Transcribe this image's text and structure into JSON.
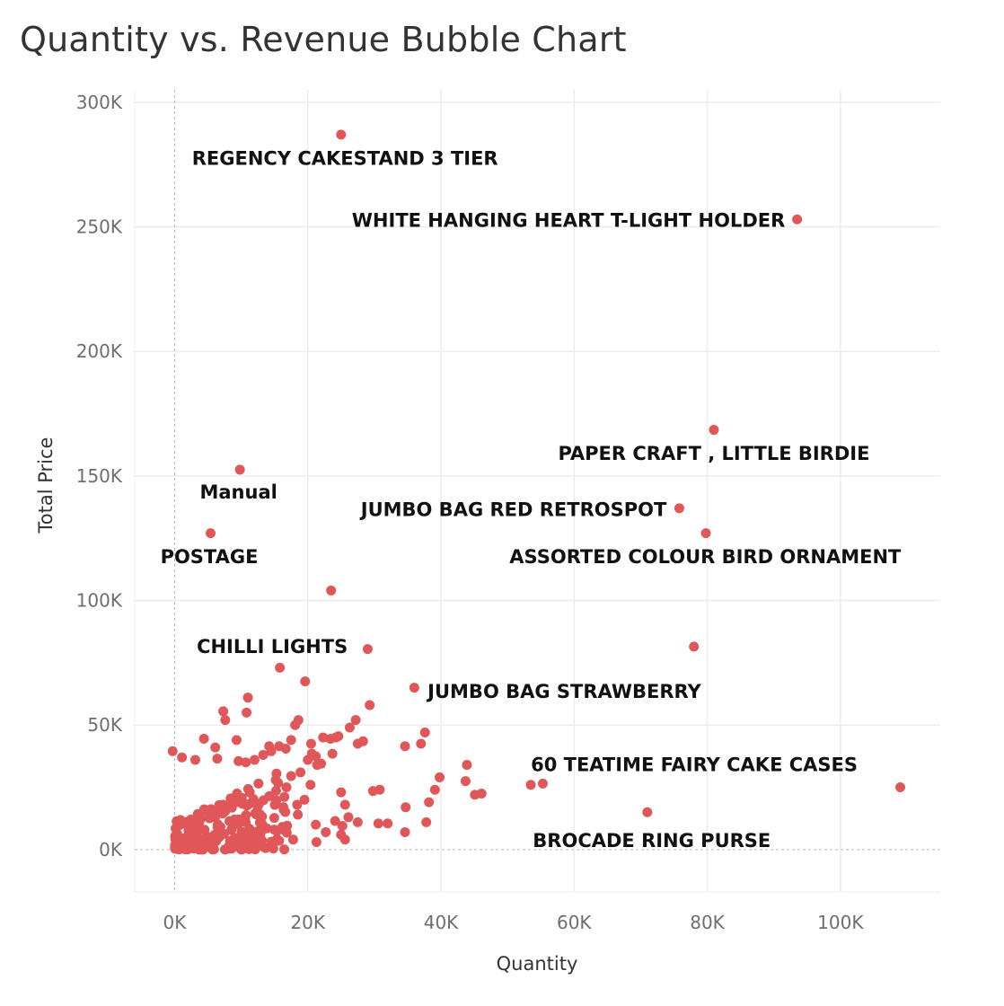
{
  "title": "Quantity vs. Revenue Bubble Chart",
  "colors": {
    "point": "#e05759",
    "grid": "#ececec",
    "zero_line": "#b5b5b5"
  },
  "chart_data": {
    "type": "scatter",
    "title": "Quantity vs. Revenue Bubble Chart",
    "xlabel": "Quantity",
    "ylabel": "Total Price",
    "xlim": [
      -6000,
      115000
    ],
    "ylim": [
      -17000,
      305000
    ],
    "xticks": [
      0,
      20000,
      40000,
      60000,
      80000,
      100000
    ],
    "xtick_labels": [
      "0K",
      "20K",
      "40K",
      "60K",
      "80K",
      "100K"
    ],
    "yticks": [
      0,
      50000,
      100000,
      150000,
      200000,
      250000,
      300000
    ],
    "ytick_labels": [
      "0K",
      "50K",
      "100K",
      "150K",
      "200K",
      "250K",
      "300K"
    ],
    "grid": true,
    "points": [
      {
        "x": 25000,
        "y": 287000
      },
      {
        "x": 93500,
        "y": 253000
      },
      {
        "x": 81000,
        "y": 168500
      },
      {
        "x": 75800,
        "y": 137000
      },
      {
        "x": 79800,
        "y": 127000
      },
      {
        "x": 9800,
        "y": 152500
      },
      {
        "x": 5400,
        "y": 127000
      },
      {
        "x": 23500,
        "y": 104000
      },
      {
        "x": 29000,
        "y": 80500
      },
      {
        "x": 78000,
        "y": 81500
      },
      {
        "x": 36000,
        "y": 65000
      },
      {
        "x": 109000,
        "y": 25000
      },
      {
        "x": 71000,
        "y": 15000
      },
      {
        "x": 53500,
        "y": 26000
      },
      {
        "x": 55300,
        "y": 26500
      },
      {
        "x": 15800,
        "y": 73000
      },
      {
        "x": 19600,
        "y": 67500
      },
      {
        "x": 11000,
        "y": 61000
      },
      {
        "x": 29300,
        "y": 58000
      },
      {
        "x": 7300,
        "y": 55500
      },
      {
        "x": 10800,
        "y": 55000
      },
      {
        "x": 7600,
        "y": 52000
      },
      {
        "x": 18600,
        "y": 52000
      },
      {
        "x": 18100,
        "y": 50000
      },
      {
        "x": 27200,
        "y": 52000
      },
      {
        "x": 37600,
        "y": 47000
      },
      {
        "x": 26300,
        "y": 49000
      },
      {
        "x": 34600,
        "y": 41500
      },
      {
        "x": 37000,
        "y": 42500
      },
      {
        "x": 43900,
        "y": 34000
      },
      {
        "x": 39800,
        "y": 29000
      },
      {
        "x": 43700,
        "y": 27500
      },
      {
        "x": 45100,
        "y": 22000
      },
      {
        "x": 46100,
        "y": 22500
      },
      {
        "x": 39100,
        "y": 24000
      },
      {
        "x": 30800,
        "y": 24000
      },
      {
        "x": 29800,
        "y": 23500
      },
      {
        "x": 38200,
        "y": 19000
      },
      {
        "x": 34700,
        "y": 17000
      },
      {
        "x": 37800,
        "y": 11000
      },
      {
        "x": 32000,
        "y": 10500
      },
      {
        "x": 30600,
        "y": 10500
      },
      {
        "x": 34600,
        "y": 7000
      },
      {
        "x": 27500,
        "y": 11000
      },
      {
        "x": 25600,
        "y": 18000
      },
      {
        "x": 25000,
        "y": 23000
      },
      {
        "x": 22700,
        "y": 7000
      },
      {
        "x": 21300,
        "y": 3000
      },
      {
        "x": 22300,
        "y": 45000
      },
      {
        "x": 23400,
        "y": 44500
      },
      {
        "x": 24200,
        "y": 45000
      },
      {
        "x": 24600,
        "y": 45500
      },
      {
        "x": 23700,
        "y": 38500
      },
      {
        "x": 27500,
        "y": 42500
      },
      {
        "x": 28300,
        "y": 43500
      },
      {
        "x": 20500,
        "y": 42500
      },
      {
        "x": 20600,
        "y": 38500
      },
      {
        "x": 21200,
        "y": 37500
      },
      {
        "x": 22000,
        "y": 34500
      },
      {
        "x": 21400,
        "y": 34000
      },
      {
        "x": 20000,
        "y": 36000
      },
      {
        "x": 17500,
        "y": 44000
      },
      {
        "x": 16700,
        "y": 40500
      },
      {
        "x": 15700,
        "y": 41500
      },
      {
        "x": 14500,
        "y": 39500
      },
      {
        "x": 14200,
        "y": 41500
      },
      {
        "x": 13300,
        "y": 38000
      },
      {
        "x": 12000,
        "y": 36000
      },
      {
        "x": 10700,
        "y": 35000
      },
      {
        "x": 9300,
        "y": 44000
      },
      {
        "x": 9600,
        "y": 35500
      },
      {
        "x": 6400,
        "y": 36500
      },
      {
        "x": 4400,
        "y": 44500
      },
      {
        "x": 6100,
        "y": 41000
      },
      {
        "x": 1100,
        "y": 37000
      },
      {
        "x": -300,
        "y": 39500
      },
      {
        "x": 3100,
        "y": 36000
      },
      {
        "x": 20400,
        "y": 26000
      },
      {
        "x": 19500,
        "y": 20000
      },
      {
        "x": 18500,
        "y": 14000
      },
      {
        "x": 21200,
        "y": 10000
      },
      {
        "x": 25200,
        "y": 9500
      },
      {
        "x": 24100,
        "y": 11500
      },
      {
        "x": 26100,
        "y": 13000
      },
      {
        "x": 25000,
        "y": 6000
      },
      {
        "x": 25600,
        "y": 4000
      },
      {
        "x": 18400,
        "y": 18000
      },
      {
        "x": 16800,
        "y": 25000
      },
      {
        "x": 15300,
        "y": 30500
      },
      {
        "x": 17500,
        "y": 29500
      },
      {
        "x": 18900,
        "y": 31000
      },
      {
        "x": 16300,
        "y": 8000
      },
      {
        "x": 17800,
        "y": 4000
      },
      {
        "x": 15700,
        "y": 3500
      },
      {
        "x": 12900,
        "y": 4500
      },
      {
        "x": 11100,
        "y": 6500
      }
    ],
    "cluster": {
      "x_range": [
        0,
        17000
      ],
      "y_range": [
        0,
        32000
      ],
      "points": 220
    },
    "annotations": [
      {
        "label": "REGENCY CAKESTAND 3 TIER",
        "anchor": "start",
        "x": 2600,
        "y": 277500
      },
      {
        "label": "WHITE HANGING HEART T-LIGHT HOLDER",
        "anchor": "end",
        "x": 91700,
        "y": 252500
      },
      {
        "label": "PAPER CRAFT , LITTLE BIRDIE",
        "anchor": "middle",
        "x": 81000,
        "y": 159000
      },
      {
        "label": "Manual",
        "anchor": "middle",
        "x": 9600,
        "y": 143500
      },
      {
        "label": "JUMBO BAG RED RETROSPOT",
        "anchor": "end",
        "x": 73900,
        "y": 136500
      },
      {
        "label": "POSTAGE",
        "anchor": "middle",
        "x": 5200,
        "y": 117500
      },
      {
        "label": "ASSORTED COLOUR BIRD ORNAMENT",
        "anchor": "middle",
        "x": 79700,
        "y": 117500
      },
      {
        "label": "CHILLI LIGHTS",
        "anchor": "end",
        "x": 26000,
        "y": 81500
      },
      {
        "label": "JUMBO BAG STRAWBERRY",
        "anchor": "start",
        "x": 38000,
        "y": 63500
      },
      {
        "label": "60 TEATIME FAIRY CAKE CASES",
        "anchor": "start",
        "x": 53500,
        "y": 34000
      },
      {
        "label": "BROCADE RING PURSE",
        "anchor": "start",
        "x": 53800,
        "y": 3500
      }
    ]
  }
}
